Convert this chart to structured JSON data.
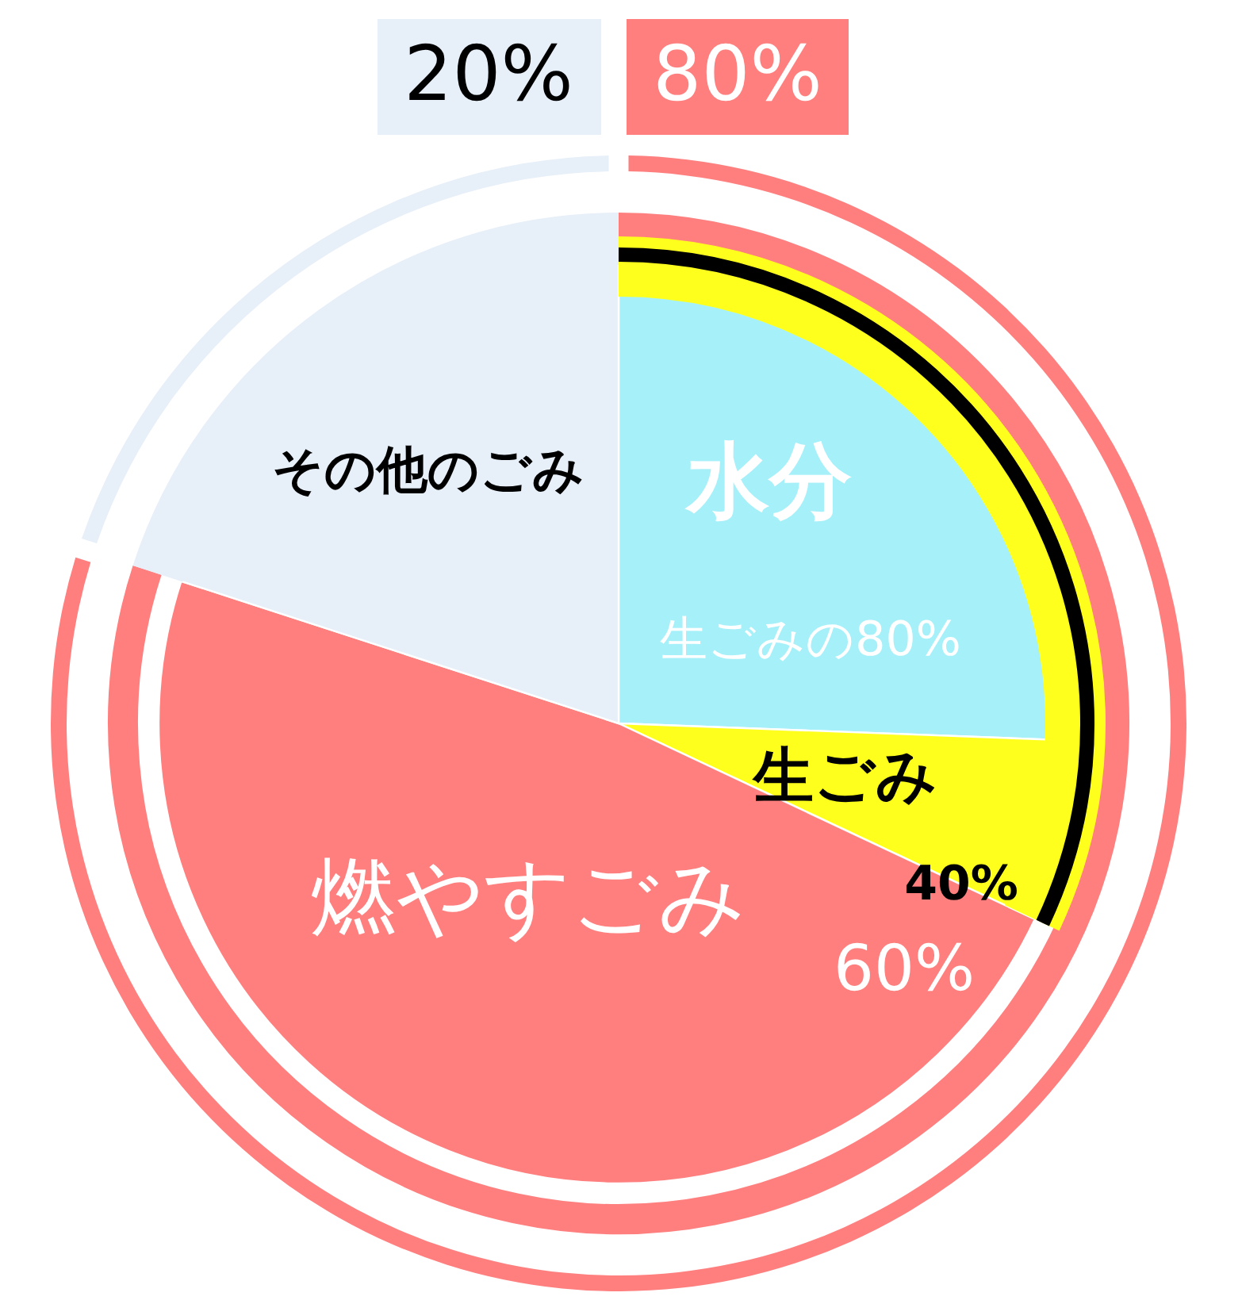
{
  "chart_data": {
    "type": "pie",
    "categories": [
      "水分",
      "生ごみ",
      "燃やすごみ",
      "その他のごみ"
    ],
    "values": [
      25.6,
      6.4,
      48,
      20
    ],
    "colors": [
      "#a6f0fa",
      "#ffff1e",
      "#ff7f7f",
      "#e7eff9"
    ],
    "series": [
      {
        "values": [
          null,
          null,
          80,
          20
        ],
        "colors": [
          null,
          null,
          "#ff7f7f",
          "#e7eff9"
        ],
        "value_labels": [
          null,
          null,
          "80%",
          "20%"
        ]
      }
    ],
    "annotations": [
      "生ごみの80%",
      "40%",
      "60%"
    ]
  }
}
